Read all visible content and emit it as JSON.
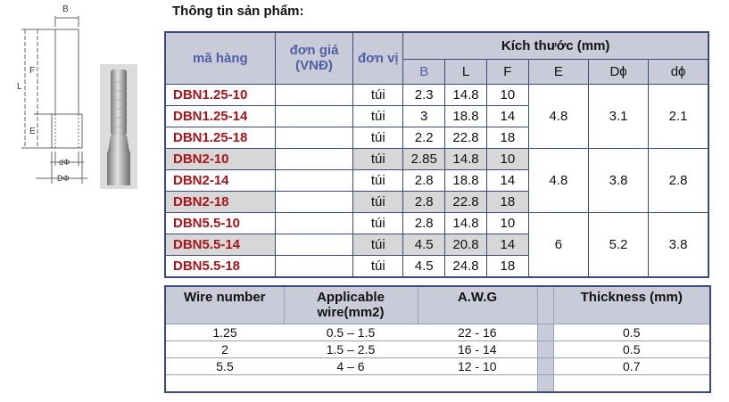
{
  "title": "Thông tin sản phẩm:",
  "diagram": {
    "labels": {
      "b": "B",
      "f": "F",
      "l": "L",
      "e": "E",
      "d_small": "dΦ",
      "d_big": "DΦ"
    }
  },
  "product_table": {
    "headers": {
      "code": "mã hàng",
      "price": "đơn giá (VNĐ)",
      "unit": "đơn vị",
      "size": "Kích thước (mm)",
      "b": "B",
      "l": "L",
      "f": "F",
      "e": "E",
      "dphi_big": "Dϕ",
      "dphi_small": "dϕ"
    },
    "rows": [
      {
        "code": "DBN1.25-10",
        "price": "",
        "unit": "túi",
        "b": "2.3",
        "l": "14.8",
        "f": "10"
      },
      {
        "code": "DBN1.25-14",
        "price": "",
        "unit": "túi",
        "b": "3",
        "l": "18.8",
        "f": "14"
      },
      {
        "code": "DBN1.25-18",
        "price": "",
        "unit": "túi",
        "b": "2.2",
        "l": "22.8",
        "f": "18"
      },
      {
        "code": "DBN2-10",
        "price": "",
        "unit": "túi",
        "b": "2.85",
        "l": "14.8",
        "f": "10"
      },
      {
        "code": "DBN2-14",
        "price": "",
        "unit": "túi",
        "b": "2.8",
        "l": "18.8",
        "f": "14"
      },
      {
        "code": "DBN2-18",
        "price": "",
        "unit": "túi",
        "b": "2.8",
        "l": "22.8",
        "f": "18"
      },
      {
        "code": "DBN5.5-10",
        "price": "",
        "unit": "túi",
        "b": "2.8",
        "l": "14.8",
        "f": "10"
      },
      {
        "code": "DBN5.5-14",
        "price": "",
        "unit": "túi",
        "b": "4.5",
        "l": "20.8",
        "f": "14"
      },
      {
        "code": "DBN5.5-18",
        "price": "",
        "unit": "túi",
        "b": "4.5",
        "l": "24.8",
        "f": "18"
      }
    ],
    "groups": [
      {
        "e": "4.8",
        "dphi_big": "3.1",
        "dphi_small": "2.1"
      },
      {
        "e": "4.8",
        "dphi_big": "3.8",
        "dphi_small": "2.8"
      },
      {
        "e": "6",
        "dphi_big": "5.2",
        "dphi_small": "3.8"
      }
    ]
  },
  "wire_table": {
    "headers": {
      "wire_number": "Wire number",
      "applicable": "Applicable wire(mm2)",
      "awg": "A.W.G",
      "thickness": "Thickness (mm)"
    },
    "rows": [
      {
        "wire_number": "1.25",
        "applicable": "0.5 – 1.5",
        "awg": "22 - 16",
        "thickness": "0.5"
      },
      {
        "wire_number": "2",
        "applicable": "1.5 – 2.5",
        "awg": "16 - 14",
        "thickness": "0.5"
      },
      {
        "wire_number": "5.5",
        "applicable": "4 – 6",
        "awg": "12 - 10",
        "thickness": "0.7"
      }
    ]
  }
}
